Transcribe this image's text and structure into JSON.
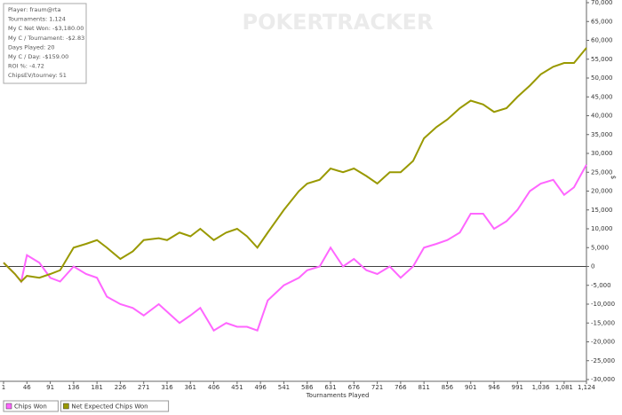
{
  "chart_data": {
    "type": "line",
    "watermark": "POKERTRACKER",
    "stats": [
      "Player: fraum@rta",
      "Tournaments: 1,124",
      "My C Net Won: -$3,180.00",
      "My C / Tournament: -$2.83",
      "Days Played: 20",
      "My C / Day: -$159.00",
      "ROI %: -4.72",
      "ChipsEV/tourney: 51"
    ],
    "x_label": "Tournaments Played",
    "y_label": "$",
    "x": [
      1,
      23,
      35,
      46,
      70,
      91,
      110,
      136,
      160,
      181,
      200,
      226,
      250,
      271,
      300,
      316,
      340,
      361,
      380,
      406,
      430,
      451,
      470,
      490,
      510,
      541,
      570,
      586,
      610,
      631,
      655,
      676,
      700,
      721,
      745,
      766,
      790,
      811,
      835,
      856,
      880,
      901,
      925,
      946,
      970,
      991,
      1015,
      1036,
      1060,
      1081,
      1100,
      1124
    ],
    "series": [
      {
        "name": "Chips Won",
        "color": "#ff66ff",
        "values": [
          1000,
          -2000,
          -4000,
          3000,
          1000,
          -3000,
          -4000,
          0,
          -2000,
          -3000,
          -8000,
          -10000,
          -11000,
          -13000,
          -10000,
          -12000,
          -15000,
          -13000,
          -11000,
          -17000,
          -15000,
          -16000,
          -16000,
          -17000,
          -9000,
          -5000,
          -3000,
          -1000,
          0,
          5000,
          0,
          2000,
          -1000,
          -2000,
          0,
          -3000,
          0,
          5000,
          6000,
          7000,
          9000,
          14000,
          14000,
          10000,
          12000,
          15000,
          20000,
          22000,
          23000,
          19000,
          21000,
          27000
        ]
      },
      {
        "name": "Net Expected Chips Won",
        "color": "#999900",
        "values": [
          1000,
          -2000,
          -4000,
          -2500,
          -3000,
          -2000,
          -1000,
          5000,
          6000,
          7000,
          5000,
          2000,
          4000,
          7000,
          7500,
          7000,
          9000,
          8000,
          10000,
          7000,
          9000,
          10000,
          8000,
          5000,
          9000,
          15000,
          20000,
          22000,
          23000,
          26000,
          25000,
          26000,
          24000,
          22000,
          25000,
          25000,
          28000,
          34000,
          37000,
          39000,
          42000,
          44000,
          43000,
          41000,
          42000,
          45000,
          48000,
          51000,
          53000,
          54000,
          54000,
          58000
        ]
      }
    ],
    "xlim": [
      1,
      1124
    ],
    "xticks": [
      1,
      46,
      91,
      136,
      181,
      226,
      271,
      316,
      361,
      406,
      451,
      496,
      541,
      586,
      631,
      676,
      721,
      766,
      811,
      856,
      901,
      946,
      991,
      {
        "value": 1036,
        "label": "1,036"
      },
      {
        "value": 1081,
        "label": "1,081"
      },
      {
        "value": 1124,
        "label": "1,124"
      }
    ],
    "ylim": [
      -30000,
      70000
    ],
    "yticks": [
      {
        "value": -30000,
        "label": "-30,000"
      },
      {
        "value": -25000,
        "label": "-25,000"
      },
      {
        "value": -20000,
        "label": "-20,000"
      },
      {
        "value": -15000,
        "label": "-15,000"
      },
      {
        "value": -10000,
        "label": "-10,000"
      },
      {
        "value": -5000,
        "label": "-5,000"
      },
      0,
      {
        "value": 5000,
        "label": "5,000"
      },
      {
        "value": 10000,
        "label": "10,000"
      },
      {
        "value": 15000,
        "label": "15,000"
      },
      {
        "value": 20000,
        "label": "20,000"
      },
      {
        "value": 25000,
        "label": "25,000"
      },
      {
        "value": 30000,
        "label": "30,000"
      },
      {
        "value": 35000,
        "label": "35,000"
      },
      {
        "value": 40000,
        "label": "40,000"
      },
      {
        "value": 45000,
        "label": "45,000"
      },
      {
        "value": 50000,
        "label": "50,000"
      },
      {
        "value": 55000,
        "label": "55,000"
      },
      {
        "value": 60000,
        "label": "60,000"
      },
      {
        "value": 65000,
        "label": "65,000"
      },
      {
        "value": 70000,
        "label": "70,000"
      }
    ]
  }
}
